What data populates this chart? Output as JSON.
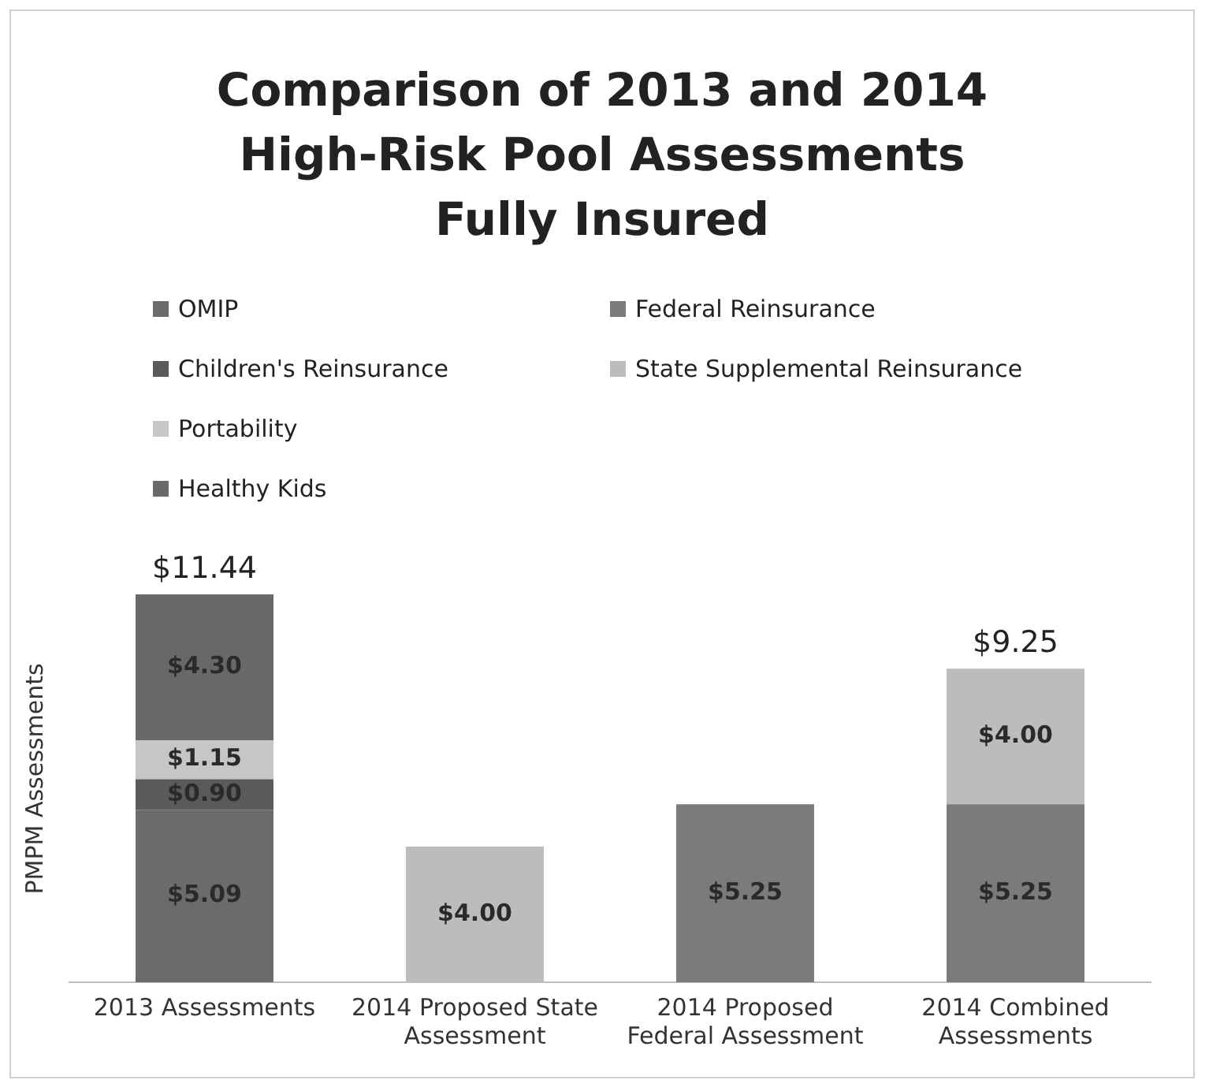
{
  "chart_data": {
    "type": "bar",
    "title": "Comparison of 2013 and 2014\nHigh-Risk Pool Assessments\nFully Insured",
    "ylabel": "PMPM Assessments",
    "stacked": true,
    "legend": "top",
    "grid": false,
    "tick_labels": "x",
    "categories": [
      "2013 Assessments",
      "2014 Proposed State Assessment",
      "2014 Proposed Federal Assessment",
      "2014 Combined Assessments"
    ],
    "series": [
      {
        "name": "OMIP",
        "color": "#6b6b6b",
        "values": [
          5.09,
          null,
          null,
          null
        ],
        "value_labels": [
          "$5.09",
          null,
          null,
          null
        ]
      },
      {
        "name": "Children's Reinsurance",
        "color": "#5a5a5a",
        "values": [
          0.9,
          null,
          null,
          null
        ],
        "value_labels": [
          "$0.90",
          null,
          null,
          null
        ]
      },
      {
        "name": "Portability",
        "color": "#c6c6c6",
        "values": [
          1.15,
          null,
          null,
          null
        ],
        "value_labels": [
          "$1.15",
          null,
          null,
          null
        ]
      },
      {
        "name": "Healthy Kids",
        "color": "#686868",
        "values": [
          4.3,
          null,
          null,
          null
        ],
        "value_labels": [
          "$4.30",
          null,
          null,
          null
        ]
      },
      {
        "name": "Federal Reinsurance",
        "color": "#7b7b7b",
        "values": [
          null,
          null,
          5.25,
          5.25
        ],
        "value_labels": [
          null,
          null,
          "$5.25",
          "$5.25"
        ]
      },
      {
        "name": "State Supplemental Reinsurance",
        "color": "#bcbcbc",
        "values": [
          null,
          4.0,
          null,
          4.0
        ],
        "value_labels": [
          null,
          "$4.00",
          null,
          "$4.00"
        ]
      }
    ],
    "totals": [
      "$11.44",
      null,
      null,
      "$9.25"
    ]
  }
}
